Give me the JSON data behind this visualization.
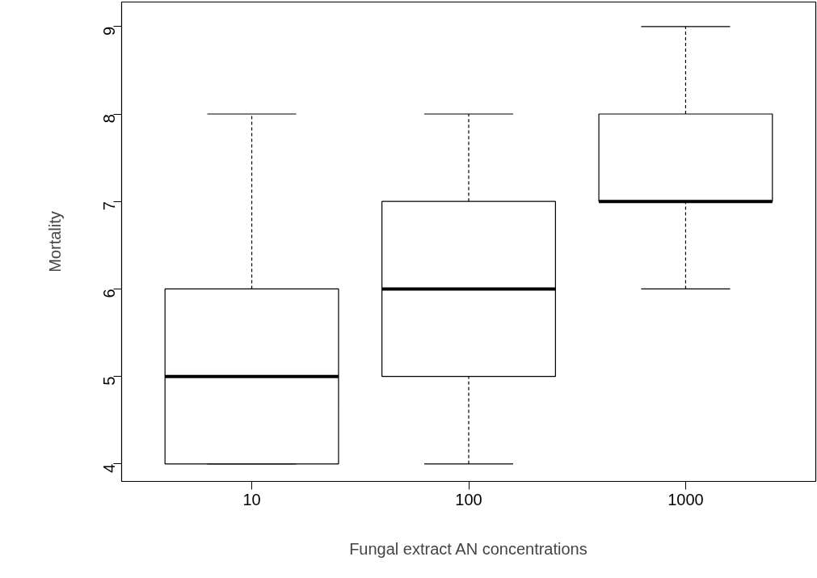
{
  "chart_data": {
    "type": "box",
    "xlabel": "Fungal extract AN concentrations",
    "ylabel": "Mortality",
    "categories": [
      "10",
      "100",
      "1000"
    ],
    "boxes": [
      {
        "low": 4,
        "q1": 4,
        "median": 5,
        "q3": 6,
        "high": 8
      },
      {
        "low": 4,
        "q1": 5,
        "median": 6,
        "q3": 7,
        "high": 8
      },
      {
        "low": 6,
        "q1": 7,
        "median": 7,
        "q3": 8,
        "high": 9
      }
    ],
    "ylim": [
      3.8,
      9.28
    ],
    "yticks": [
      4,
      5,
      6,
      7,
      8,
      9
    ],
    "grid": false
  }
}
